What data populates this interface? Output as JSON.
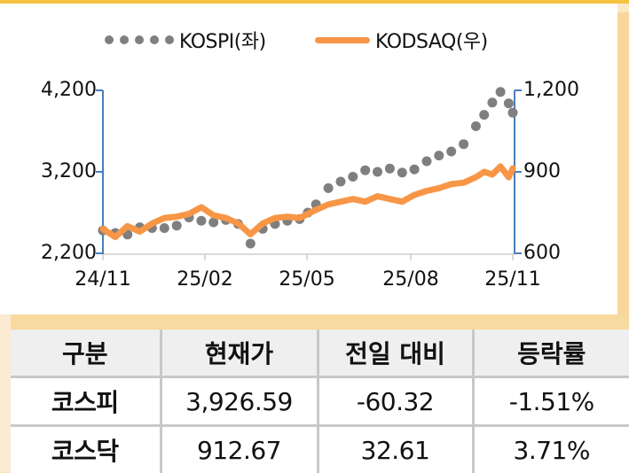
{
  "chart_data": {
    "type": "line",
    "title": "",
    "legend": [
      {
        "name": "KOSPI(좌)",
        "style": "dotted",
        "color": "#7f7f7f",
        "axis": "left"
      },
      {
        "name": "KODSAQ(우)",
        "style": "solid",
        "color": "#f79646",
        "axis": "right"
      }
    ],
    "legend_position": "top",
    "x_tick_labels": [
      "24/11",
      "25/02",
      "25/05",
      "25/08",
      "25/11"
    ],
    "y_left": {
      "ticks": [
        "4,200",
        "3,200",
        "2,200"
      ],
      "range": [
        2200,
        4200
      ]
    },
    "y_right": {
      "ticks": [
        "1,200",
        "900",
        "600"
      ],
      "range": [
        600,
        1200
      ]
    },
    "grid": false,
    "x": [
      0,
      0.03,
      0.06,
      0.09,
      0.12,
      0.15,
      0.18,
      0.21,
      0.24,
      0.27,
      0.3,
      0.33,
      0.36,
      0.39,
      0.42,
      0.45,
      0.48,
      0.5,
      0.52,
      0.55,
      0.58,
      0.61,
      0.64,
      0.67,
      0.7,
      0.73,
      0.76,
      0.79,
      0.82,
      0.85,
      0.88,
      0.91,
      0.93,
      0.95,
      0.97,
      0.99,
      1.0
    ],
    "series": [
      {
        "name": "KOSPI(좌)",
        "values": [
          2480,
          2450,
          2430,
          2520,
          2510,
          2510,
          2540,
          2640,
          2600,
          2580,
          2610,
          2560,
          2320,
          2500,
          2560,
          2600,
          2620,
          2700,
          2800,
          3000,
          3080,
          3140,
          3220,
          3200,
          3240,
          3190,
          3230,
          3330,
          3400,
          3450,
          3540,
          3760,
          3900,
          4050,
          4180,
          4040,
          3926
        ]
      },
      {
        "name": "KODSAQ(우)",
        "values": [
          690,
          660,
          700,
          680,
          710,
          730,
          735,
          745,
          770,
          740,
          730,
          710,
          670,
          710,
          730,
          735,
          730,
          745,
          760,
          780,
          790,
          800,
          790,
          810,
          800,
          790,
          815,
          830,
          840,
          855,
          860,
          880,
          900,
          890,
          920,
          880,
          913
        ]
      }
    ]
  },
  "legend": {
    "kospi_label": "KOSPI(좌)",
    "kosdaq_label": "KODSAQ(우)"
  },
  "axes": {
    "left": [
      "4,200",
      "3,200",
      "2,200"
    ],
    "right": [
      "1,200",
      "900",
      "600"
    ],
    "x": [
      "24/11",
      "25/02",
      "25/05",
      "25/08",
      "25/11"
    ]
  },
  "table": {
    "headers": [
      "구분",
      "현재가",
      "전일 대비",
      "등락률"
    ],
    "rows": [
      [
        "코스피",
        "3,926.59",
        "-60.32",
        "-1.51%"
      ],
      [
        "코스닥",
        "912.67",
        "32.61",
        "3.71%"
      ]
    ]
  },
  "colors": {
    "kospi": "#7f7f7f",
    "kosdaq": "#f79646",
    "axis": "#4a7ebb",
    "accent_band": "#f8d9a0",
    "top_line": "#f5c242"
  }
}
